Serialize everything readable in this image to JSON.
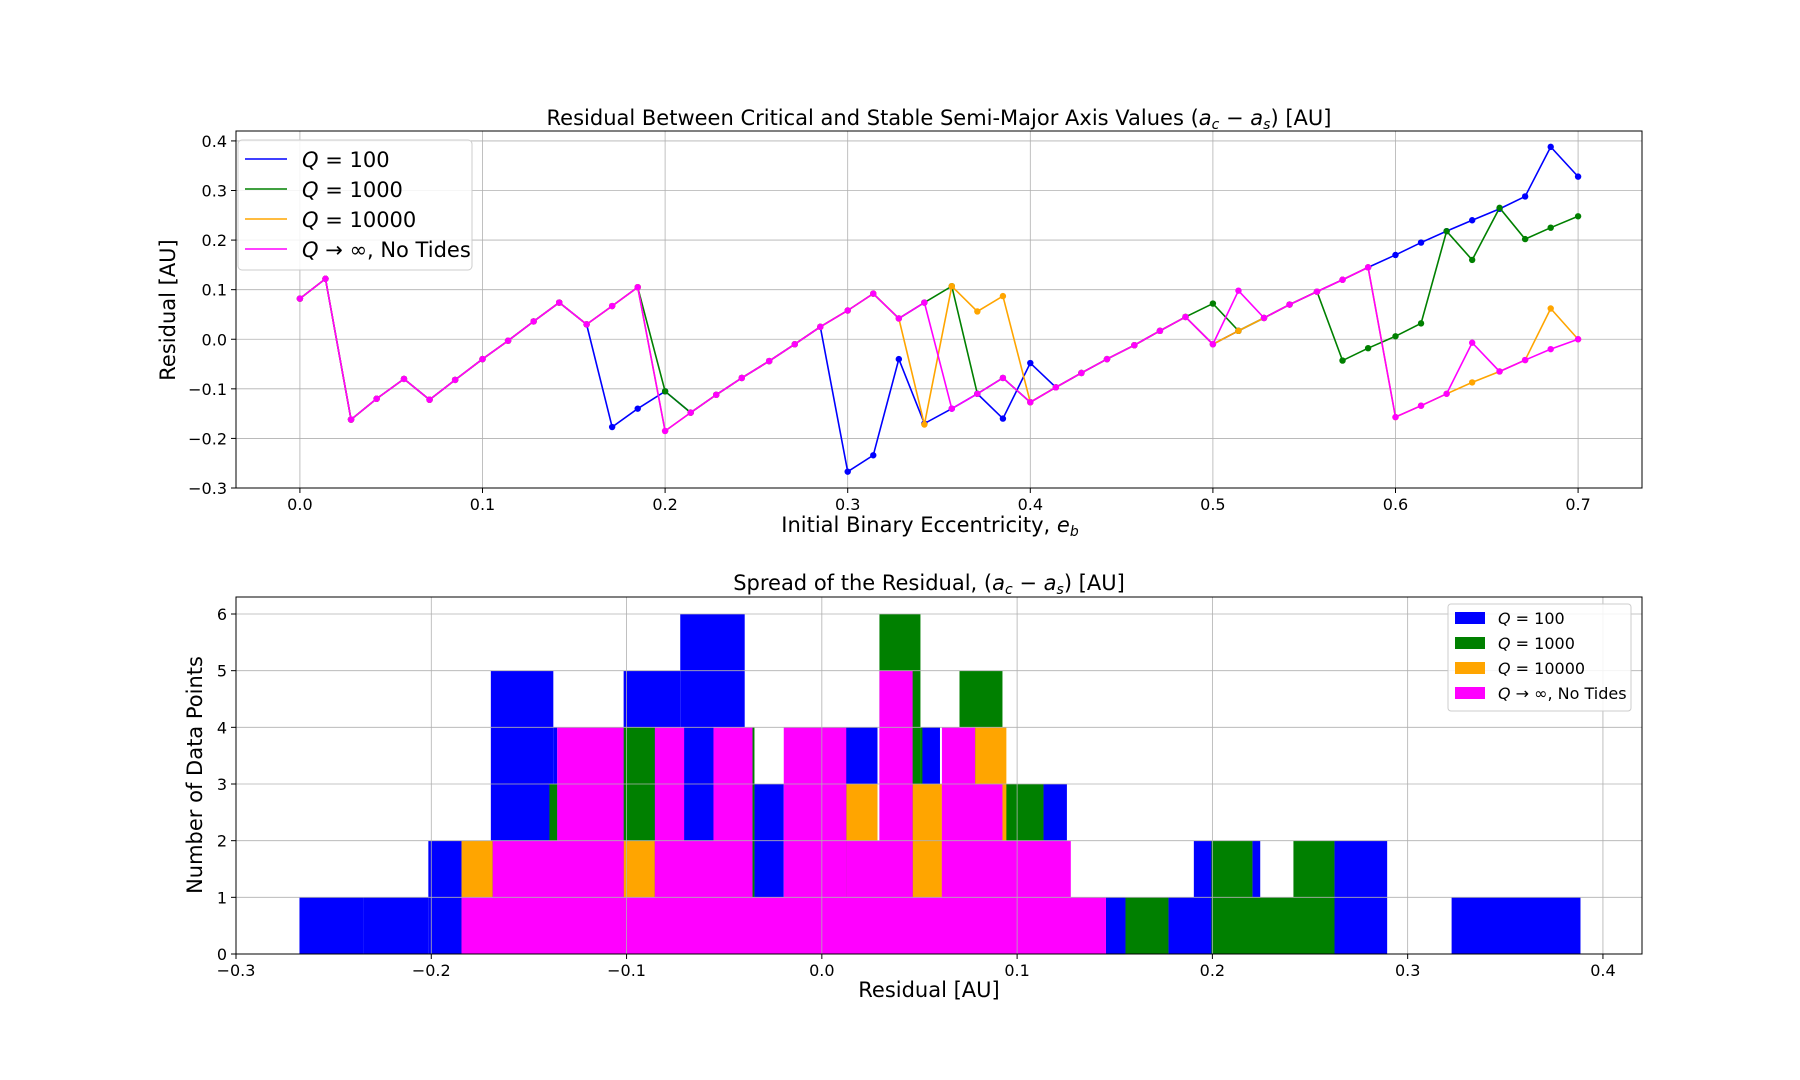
{
  "chart_data": [
    {
      "type": "line",
      "title": "Residual Between Critical and Stable Semi-Major Axis Values (a_c − a_s) [AU]",
      "title_parts": {
        "pre": "Residual Between Critical and Stable Semi-Major Axis Values (",
        "a": "a",
        "c": "c",
        "minus": " − ",
        "s": "s",
        "post": ") [AU]"
      },
      "xlabel": "Initial Binary Eccentricity, e_b",
      "xlabel_parts": {
        "pre": "Initial Binary Eccentricity, ",
        "e": "e",
        "b": "b"
      },
      "ylabel": "Residual [AU]",
      "xlim": [
        -0.035,
        0.735
      ],
      "ylim": [
        -0.3,
        0.42
      ],
      "xticks": [
        0.0,
        0.1,
        0.2,
        0.3,
        0.4,
        0.5,
        0.6,
        0.7
      ],
      "xtick_labels": [
        "0.0",
        "0.1",
        "0.2",
        "0.3",
        "0.4",
        "0.5",
        "0.6",
        "0.7"
      ],
      "yticks": [
        -0.3,
        -0.2,
        -0.1,
        0.0,
        0.1,
        0.2,
        0.3,
        0.4
      ],
      "ytick_labels": [
        "−0.3",
        "−0.2",
        "−0.1",
        "0.0",
        "0.1",
        "0.2",
        "0.3",
        "0.4"
      ],
      "grid": true,
      "legend": "top-left",
      "x": [
        0.0,
        0.014,
        0.028,
        0.042,
        0.057,
        0.071,
        0.085,
        0.1,
        0.114,
        0.128,
        0.142,
        0.157,
        0.171,
        0.185,
        0.2,
        0.214,
        0.228,
        0.242,
        0.257,
        0.271,
        0.285,
        0.3,
        0.314,
        0.328,
        0.342,
        0.357,
        0.371,
        0.385,
        0.4,
        0.414,
        0.428,
        0.442,
        0.457,
        0.471,
        0.485,
        0.5,
        0.514,
        0.528,
        0.542,
        0.557,
        0.571,
        0.585,
        0.6,
        0.614,
        0.628,
        0.642,
        0.657,
        0.671,
        0.685,
        0.7
      ],
      "series": [
        {
          "name": "Q = 100",
          "label_parts": {
            "q": "Q",
            "rest": " = 100"
          },
          "color": "#0000ff",
          "values": [
            0.082,
            0.122,
            -0.162,
            -0.12,
            -0.08,
            -0.122,
            -0.082,
            -0.04,
            -0.003,
            0.036,
            0.074,
            0.03,
            -0.177,
            -0.14,
            -0.105,
            -0.148,
            -0.112,
            -0.078,
            -0.044,
            -0.01,
            0.025,
            -0.267,
            -0.234,
            -0.04,
            -0.17,
            -0.14,
            -0.11,
            -0.16,
            -0.048,
            -0.097,
            -0.068,
            -0.04,
            -0.012,
            0.017,
            0.045,
            -0.01,
            0.017,
            0.043,
            0.07,
            0.096,
            0.12,
            0.145,
            0.17,
            0.195,
            0.218,
            0.24,
            0.263,
            0.288,
            0.388,
            0.328
          ]
        },
        {
          "name": "Q = 1000",
          "label_parts": {
            "q": "Q",
            "rest": " = 1000"
          },
          "color": "#008000",
          "values": [
            0.082,
            0.122,
            -0.162,
            -0.12,
            -0.08,
            -0.122,
            -0.082,
            -0.04,
            -0.003,
            0.036,
            0.074,
            0.03,
            0.067,
            0.105,
            -0.105,
            -0.148,
            -0.112,
            -0.078,
            -0.044,
            -0.01,
            0.025,
            0.058,
            0.092,
            0.042,
            0.074,
            0.107,
            -0.11,
            -0.078,
            -0.127,
            -0.097,
            -0.068,
            -0.04,
            -0.012,
            0.017,
            0.045,
            0.072,
            0.017,
            0.043,
            0.07,
            0.096,
            -0.043,
            -0.018,
            0.006,
            0.032,
            0.218,
            0.16,
            0.265,
            0.202,
            0.225,
            0.248
          ]
        },
        {
          "name": "Q = 10000",
          "label_parts": {
            "q": "Q",
            "rest": " = 10000"
          },
          "color": "#ffa500",
          "values": [
            0.082,
            0.122,
            -0.162,
            -0.12,
            -0.08,
            -0.122,
            -0.082,
            -0.04,
            -0.003,
            0.036,
            0.074,
            0.03,
            0.067,
            0.105,
            -0.185,
            -0.148,
            -0.112,
            -0.078,
            -0.044,
            -0.01,
            0.025,
            0.058,
            0.092,
            0.042,
            -0.172,
            0.107,
            0.056,
            0.087,
            -0.127,
            -0.097,
            -0.068,
            -0.04,
            -0.012,
            0.017,
            0.045,
            -0.01,
            0.017,
            0.043,
            0.07,
            0.096,
            0.12,
            0.145,
            -0.157,
            -0.134,
            -0.11,
            -0.087,
            -0.065,
            -0.042,
            0.062,
            0.0
          ]
        },
        {
          "name": "Q → ∞, No Tides",
          "label_parts": {
            "q": "Q",
            "rest": " → ∞, No Tides"
          },
          "color": "#ff00ff",
          "values": [
            0.082,
            0.122,
            -0.162,
            -0.12,
            -0.08,
            -0.122,
            -0.082,
            -0.04,
            -0.003,
            0.036,
            0.074,
            0.03,
            0.067,
            0.105,
            -0.185,
            -0.148,
            -0.112,
            -0.078,
            -0.044,
            -0.01,
            0.025,
            0.058,
            0.092,
            0.042,
            0.074,
            -0.14,
            -0.11,
            -0.078,
            -0.127,
            -0.097,
            -0.068,
            -0.04,
            -0.012,
            0.017,
            0.045,
            -0.01,
            0.098,
            0.043,
            0.07,
            0.096,
            0.12,
            0.145,
            -0.157,
            -0.134,
            -0.11,
            -0.007,
            -0.065,
            -0.042,
            -0.02,
            0.0
          ]
        }
      ]
    },
    {
      "type": "bar",
      "subtype": "histogram",
      "title": "Spread of the Residual, (a_c − a_s) [AU]",
      "title_parts": {
        "pre": "Spread of the Residual, (",
        "a": "a",
        "c": "c",
        "minus": " − ",
        "s": "s",
        "post": ") [AU]"
      },
      "xlabel": "Residual [AU]",
      "ylabel": "Number of Data Points",
      "xlim": [
        -0.3,
        0.42
      ],
      "ylim": [
        0,
        6.3
      ],
      "xticks": [
        -0.3,
        -0.2,
        -0.1,
        0.0,
        0.1,
        0.2,
        0.3,
        0.4
      ],
      "xtick_labels": [
        "−0.3",
        "−0.2",
        "−0.1",
        "0.0",
        "0.1",
        "0.2",
        "0.3",
        "0.4"
      ],
      "yticks": [
        0,
        1,
        2,
        3,
        4,
        5,
        6
      ],
      "ytick_labels": [
        "0",
        "1",
        "2",
        "3",
        "4",
        "5",
        "6"
      ],
      "grid": true,
      "legend": "top-right",
      "series": [
        {
          "name": "Q = 100",
          "label_parts": {
            "q": "Q",
            "rest": " = 100"
          },
          "color": "#0000ff",
          "bars": [
            [
              -0.2675,
              -0.2345,
              1
            ],
            [
              -0.2345,
              -0.2015,
              1
            ],
            [
              -0.2015,
              -0.1845,
              2
            ],
            [
              -0.1695,
              -0.1375,
              5
            ],
            [
              -0.1375,
              -0.1355,
              4
            ],
            [
              -0.1015,
              -0.0725,
              5
            ],
            [
              -0.0725,
              -0.0395,
              6
            ],
            [
              -0.0705,
              -0.0555,
              4
            ],
            [
              -0.0345,
              -0.0195,
              3
            ],
            [
              -0.0345,
              -0.0335,
              1
            ],
            [
              0.0085,
              0.0285,
              4
            ],
            [
              0.0505,
              0.0605,
              4
            ],
            [
              0.1135,
              0.1255,
              3
            ],
            [
              0.1455,
              0.1555,
              1
            ],
            [
              0.1775,
              0.1975,
              1
            ],
            [
              0.1905,
              0.2005,
              2
            ],
            [
              0.2205,
              0.2245,
              2
            ],
            [
              0.2625,
              0.2895,
              2
            ],
            [
              0.3225,
              0.3885,
              1
            ]
          ]
        },
        {
          "name": "Q = 1000",
          "label_parts": {
            "q": "Q",
            "rest": " = 1000"
          },
          "color": "#008000",
          "bars": [
            [
              -0.1395,
              -0.1355,
              3
            ],
            [
              -0.1195,
              -0.1015,
              4
            ],
            [
              -0.1015,
              -0.0855,
              4
            ],
            [
              -0.0355,
              -0.0345,
              4
            ],
            [
              -0.0035,
              0.0085,
              4
            ],
            [
              0.0295,
              0.0505,
              6
            ],
            [
              0.0505,
              0.0515,
              4
            ],
            [
              0.0705,
              0.0925,
              5
            ],
            [
              0.0925,
              0.1135,
              3
            ],
            [
              0.1555,
              0.1775,
              1
            ],
            [
              0.1995,
              0.2205,
              2
            ],
            [
              0.2005,
              0.2625,
              1
            ],
            [
              0.2415,
              0.2625,
              2
            ]
          ]
        },
        {
          "name": "Q = 10000",
          "label_parts": {
            "q": "Q",
            "rest": " = 10000"
          },
          "color": "#ffa500",
          "bars": [
            [
              -0.1845,
              -0.1685,
              2
            ],
            [
              -0.1015,
              -0.0855,
              2
            ],
            [
              0.0125,
              0.0285,
              3
            ],
            [
              0.0465,
              0.0615,
              3
            ],
            [
              0.0785,
              0.0945,
              4
            ]
          ]
        },
        {
          "name": "Q → ∞, No Tides",
          "label_parts": {
            "q": "Q",
            "rest": " → ∞, No Tides"
          },
          "color": "#ff00ff",
          "bars": [
            [
              -0.1845,
              0.1455,
              1
            ],
            [
              -0.1685,
              -0.1015,
              2
            ],
            [
              -0.1355,
              -0.1015,
              4
            ],
            [
              -0.0855,
              -0.0355,
              2
            ],
            [
              -0.0855,
              -0.0705,
              4
            ],
            [
              -0.0555,
              -0.0355,
              4
            ],
            [
              -0.0195,
              0.0125,
              4
            ],
            [
              0.0125,
              0.0465,
              2
            ],
            [
              0.0295,
              0.0465,
              5
            ],
            [
              0.0615,
              0.1275,
              2
            ],
            [
              0.0615,
              0.0785,
              4
            ],
            [
              0.0615,
              0.0925,
              3
            ]
          ]
        }
      ]
    }
  ]
}
